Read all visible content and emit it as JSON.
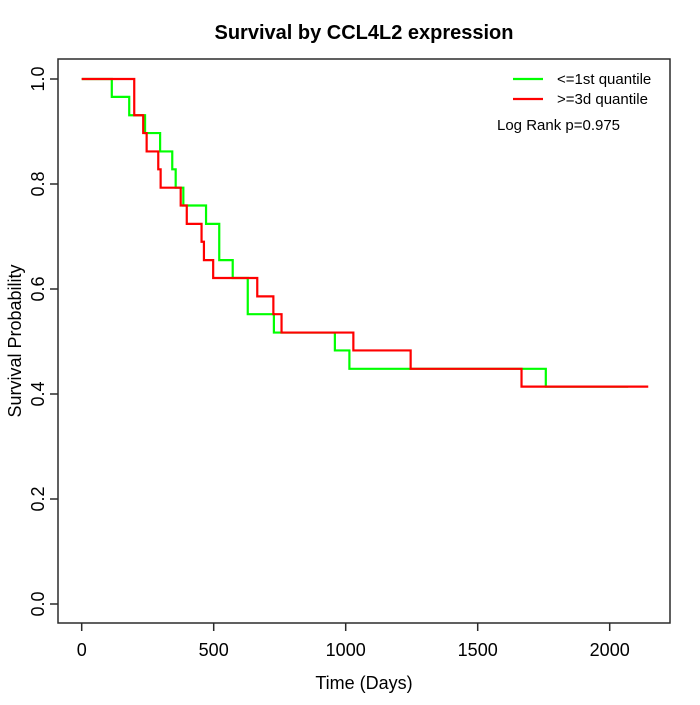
{
  "chart_data": {
    "type": "line",
    "subtype": "kaplan-meier-step",
    "title": "Survival by CCL4L2 expression",
    "xlabel": "Time (Days)",
    "ylabel": "Survival Probability",
    "xlim": [
      0,
      2200
    ],
    "ylim": [
      0.0,
      1.0
    ],
    "xticks": [
      0,
      500,
      1000,
      1500,
      2000
    ],
    "yticks": [
      0.0,
      0.2,
      0.4,
      0.6,
      0.8,
      1.0
    ],
    "ytick_labels": [
      "0.0",
      "0.2",
      "0.4",
      "0.6",
      "0.8",
      "1.0"
    ],
    "grid": false,
    "box": true,
    "legend_position": "top-right",
    "annotation": "Log Rank p=0.975",
    "legend": [
      {
        "label": "<=1st quantile",
        "color": "#00FF00"
      },
      {
        "label": ">=3d quantile",
        "color": "#FF0000"
      }
    ],
    "series": [
      {
        "name": "<=1st quantile",
        "color": "#00FF00",
        "start_time": 0,
        "start_survival": 1.0,
        "events": [
          [
            114,
            0.966
          ],
          [
            180,
            0.931
          ],
          [
            240,
            0.897
          ],
          [
            297,
            0.862
          ],
          [
            343,
            0.828
          ],
          [
            356,
            0.793
          ],
          [
            385,
            0.759
          ],
          [
            471,
            0.724
          ],
          [
            521,
            0.655
          ],
          [
            572,
            0.621
          ],
          [
            629,
            0.552
          ],
          [
            728,
            0.517
          ],
          [
            959,
            0.483
          ],
          [
            1014,
            0.448
          ],
          [
            1758,
            0.414
          ]
        ],
        "end_time": 2070,
        "end_survival": 0.414
      },
      {
        "name": ">=3d quantile",
        "color": "#FF0000",
        "start_time": 0,
        "start_survival": 1.0,
        "events": [
          [
            199,
            0.931
          ],
          [
            233,
            0.897
          ],
          [
            246,
            0.862
          ],
          [
            290,
            0.828
          ],
          [
            299,
            0.793
          ],
          [
            375,
            0.759
          ],
          [
            398,
            0.724
          ],
          [
            454,
            0.69
          ],
          [
            463,
            0.655
          ],
          [
            498,
            0.621
          ],
          [
            665,
            0.586
          ],
          [
            726,
            0.552
          ],
          [
            757,
            0.517
          ],
          [
            1029,
            0.483
          ],
          [
            1246,
            0.448
          ],
          [
            1666,
            0.414
          ]
        ],
        "end_time": 2146,
        "end_survival": 0.414
      }
    ]
  }
}
